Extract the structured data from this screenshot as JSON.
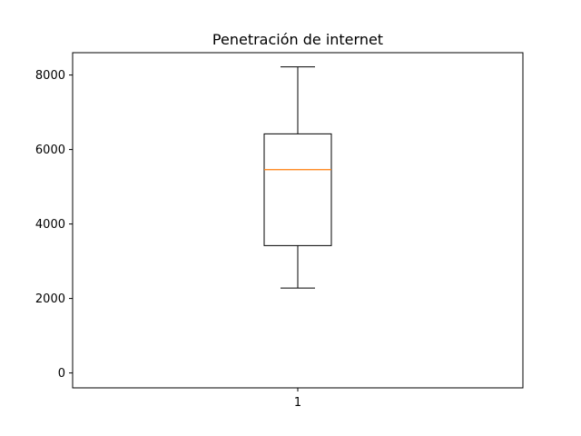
{
  "chart_data": {
    "type": "box",
    "title": "Penetración de internet",
    "categories": [
      "1"
    ],
    "box": {
      "whisker_low": 2280,
      "q1": 3420,
      "median": 5460,
      "q3": 6420,
      "whisker_high": 8220
    },
    "y_ticks": [
      0,
      2000,
      4000,
      6000,
      8000
    ],
    "ylim": [
      -400,
      8600
    ],
    "xlim": [
      0.5,
      1.5
    ],
    "grid": false,
    "colors": {
      "box": "#000000",
      "median": "#ff7f0e",
      "whisker": "#000000"
    }
  }
}
